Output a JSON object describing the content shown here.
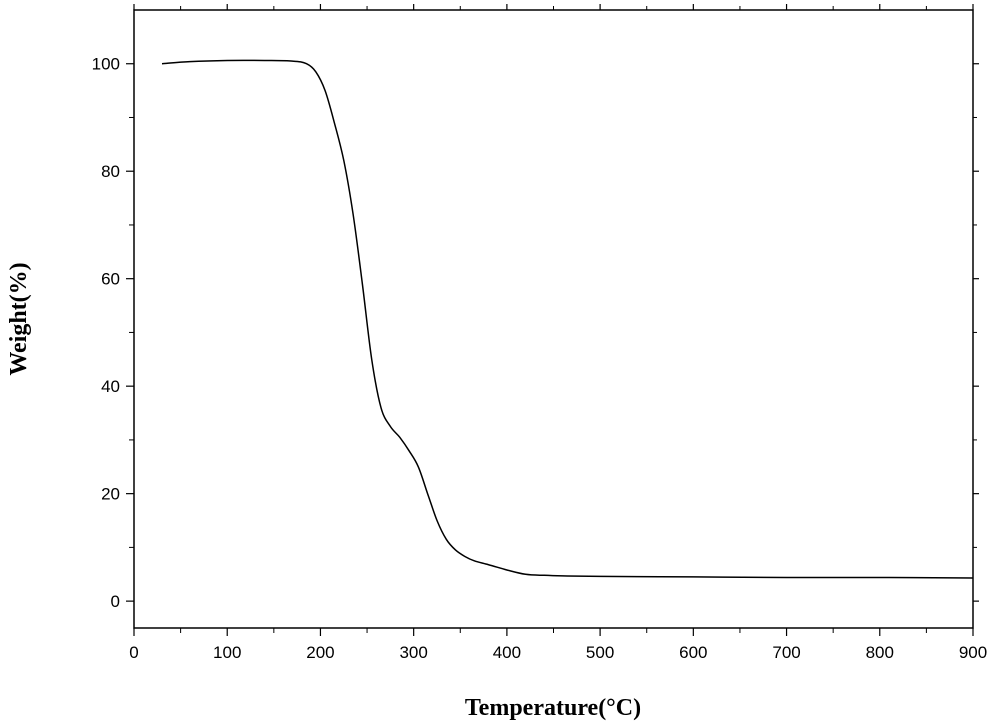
{
  "chart_data": {
    "type": "line",
    "title": "",
    "xlabel": "Temperature(°C)",
    "ylabel": "Weight(%)",
    "xlim": [
      0,
      900
    ],
    "ylim": [
      -5,
      110
    ],
    "x_ticks": [
      0,
      100,
      200,
      300,
      400,
      500,
      600,
      700,
      800,
      900
    ],
    "y_ticks": [
      0,
      20,
      40,
      60,
      80,
      100
    ],
    "grid": false,
    "legend": "none",
    "line_color": "#000000",
    "series": [
      {
        "x": [
          30,
          60,
          100,
          140,
          170,
          185,
          195,
          205,
          215,
          225,
          235,
          245,
          255,
          265,
          275,
          285,
          295,
          305,
          315,
          325,
          335,
          345,
          355,
          365,
          380,
          400,
          420,
          440,
          460,
          500,
          600,
          700,
          800,
          900
        ],
        "y": [
          100.0,
          100.4,
          100.6,
          100.6,
          100.5,
          100.0,
          98.5,
          95.0,
          89.0,
          82.0,
          72.0,
          59.0,
          45.0,
          36.0,
          32.5,
          30.5,
          28.0,
          25.0,
          20.0,
          15.0,
          11.5,
          9.5,
          8.3,
          7.5,
          6.8,
          5.8,
          5.0,
          4.8,
          4.7,
          4.6,
          4.5,
          4.4,
          4.4,
          4.3
        ]
      }
    ]
  }
}
